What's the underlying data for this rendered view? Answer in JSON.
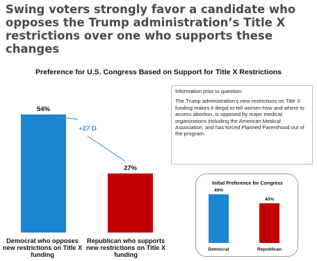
{
  "headline": "Swing voters strongly favor a candidate who opposes the Trump administration’s Title X restrictions over one who supports these changes",
  "chart_data": [
    {
      "type": "bar",
      "title": "Preference for U.S. Congress Based on Support for Title X Restrictions",
      "categories": [
        "Democrat who opposes new restrictions on Title X funding",
        "Republican who supports new restrictions on Title X funding"
      ],
      "values": [
        54,
        27
      ],
      "value_labels": [
        "54%",
        "27%"
      ],
      "colors": [
        "#1c86d2",
        "#c00000"
      ],
      "ylim": [
        0,
        60
      ],
      "annotation": "+27 D"
    },
    {
      "type": "bar",
      "title": "Initial Preference for Congress",
      "categories": [
        "Democrat",
        "Republican"
      ],
      "values": [
        49,
        40
      ],
      "value_labels": [
        "49%",
        "40%"
      ],
      "colors": [
        "#1c86d2",
        "#c00000"
      ],
      "ylim": [
        0,
        60
      ]
    }
  ],
  "info_box": {
    "header": "Information prior to question:",
    "body": "The Trump administration’s new restrictions on Title X funding makes it illegal to tell women how and where to access abortion, is opposed by major medical organizations including the American Medical Association, and has forced Planned Parenthood out of the program."
  }
}
